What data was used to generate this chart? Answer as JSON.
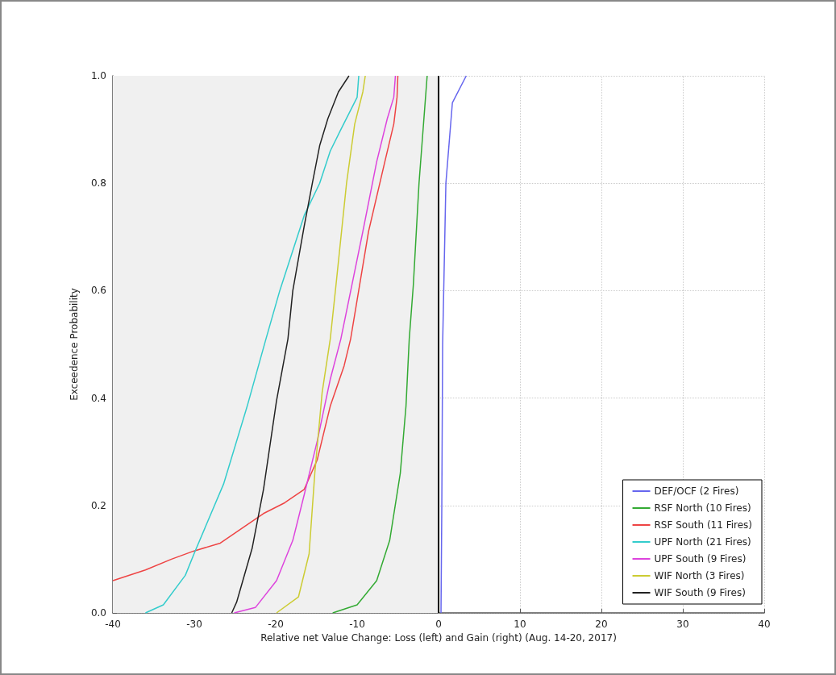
{
  "chart_data": {
    "type": "line",
    "xlabel": "Relative net Value Change: Loss (left) and Gain (right) (Aug. 14-20, 2017)",
    "ylabel": "Exceedence Probability",
    "xlim": [
      -40,
      40
    ],
    "xticks": [
      -40,
      -30,
      -20,
      -10,
      0,
      10,
      20,
      30,
      40
    ],
    "ylim": [
      0,
      1
    ],
    "yticks": [
      {
        "value": 0,
        "label": "0.0"
      },
      {
        "value": 0.2,
        "label": "0.2"
      },
      {
        "value": 0.4,
        "label": "0.4"
      },
      {
        "value": 0.6,
        "label": "0.6"
      },
      {
        "value": 0.8,
        "label": "0.8"
      },
      {
        "value": 1,
        "label": "1.0"
      }
    ],
    "grid": true,
    "legend": "bottom right",
    "line_style": "solid",
    "marker": "none",
    "bands": [
      {
        "axis": "x",
        "from": -40,
        "to": 0,
        "color": "#f0f0f0"
      }
    ],
    "ref_lines": [
      {
        "axis": "x",
        "value": 0,
        "color": "#000000"
      }
    ],
    "series": [
      {
        "name": "DEF/OCF (2 Fires)",
        "color": "#6666ee",
        "x": [
          0.3,
          0.4,
          0.5,
          0.9,
          1.7,
          3.4
        ],
        "values": [
          0,
          0.2,
          0.5,
          0.8,
          0.95,
          1
        ]
      },
      {
        "name": "RSF North (10 Fires)",
        "color": "#33aa33",
        "x": [
          -13,
          -10,
          -7.6,
          -6,
          -4.7,
          -4,
          -3.6,
          -3.1,
          -2.4,
          -1.7,
          -1.4
        ],
        "values": [
          0,
          0.015,
          0.06,
          0.135,
          0.26,
          0.385,
          0.51,
          0.61,
          0.8,
          0.94,
          1
        ]
      },
      {
        "name": "RSF South (11 Fires)",
        "color": "#ee4444",
        "x": [
          -40,
          -36,
          -32.8,
          -30.1,
          -26.8,
          -23.9,
          -21.5,
          -18.9,
          -16.5,
          -14.9,
          -13.3,
          -11.6,
          -10.8,
          -8.6,
          -6.6,
          -5.5,
          -5.1,
          -5
        ],
        "values": [
          0.06,
          0.08,
          0.1,
          0.115,
          0.13,
          0.16,
          0.185,
          0.205,
          0.23,
          0.285,
          0.385,
          0.46,
          0.51,
          0.71,
          0.84,
          0.91,
          0.96,
          1
        ]
      },
      {
        "name": "UPF North (21 Fires)",
        "color": "#33cccc",
        "x": [
          -36,
          -33.8,
          -31.1,
          -29.9,
          -26.4,
          -23.5,
          -21.2,
          -19.5,
          -16.5,
          -14.6,
          -13.3,
          -12,
          -11,
          -10,
          -9.8
        ],
        "values": [
          0,
          0.015,
          0.07,
          0.115,
          0.24,
          0.385,
          0.51,
          0.6,
          0.74,
          0.8,
          0.86,
          0.9,
          0.93,
          0.96,
          1
        ]
      },
      {
        "name": "UPF South (9 Fires)",
        "color": "#dd44dd",
        "x": [
          -25.1,
          -22.5,
          -19.9,
          -17.9,
          -16.5,
          -14.9,
          -13.3,
          -12,
          -9.3,
          -7.6,
          -6.3,
          -5.5,
          -5.3
        ],
        "values": [
          0,
          0.01,
          0.06,
          0.135,
          0.22,
          0.32,
          0.435,
          0.51,
          0.71,
          0.84,
          0.92,
          0.96,
          1
        ]
      },
      {
        "name": "WIF North (3 Fires)",
        "color": "#cccc33",
        "x": [
          -19.9,
          -17.2,
          -15.9,
          -15.2,
          -14.3,
          -13.3,
          -12.6,
          -11.3,
          -10.3,
          -9.3,
          -9
        ],
        "values": [
          0,
          0.03,
          0.11,
          0.26,
          0.41,
          0.51,
          0.61,
          0.8,
          0.91,
          0.97,
          1
        ]
      },
      {
        "name": "WIF South (9 Fires)",
        "color": "#222222",
        "x": [
          -25.4,
          -24.8,
          -22.9,
          -21.5,
          -19.9,
          -18.5,
          -17.9,
          -16.5,
          -15.5,
          -14.6,
          -13.6,
          -12.3,
          -11
        ],
        "values": [
          0,
          0.02,
          0.12,
          0.23,
          0.395,
          0.51,
          0.6,
          0.72,
          0.8,
          0.87,
          0.92,
          0.97,
          1
        ]
      }
    ]
  }
}
